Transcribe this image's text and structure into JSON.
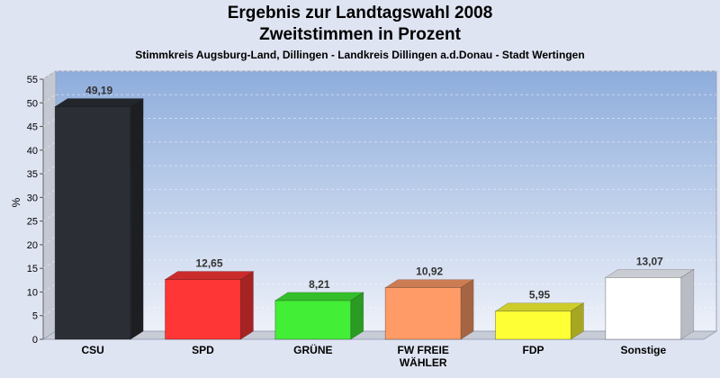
{
  "chart_data": {
    "type": "bar",
    "title": "Ergebnis zur Landtagswahl 2008",
    "subtitle": "Zweitstimmen in Prozent",
    "caption": "Stimmkreis Augsburg-Land, Dillingen - Landkreis Dillingen a.d.Donau - Stadt Wertingen",
    "ylabel": "%",
    "ylim": [
      0,
      55
    ],
    "yticks": [
      0,
      5,
      10,
      15,
      20,
      25,
      30,
      35,
      40,
      45,
      50,
      55
    ],
    "grid": true,
    "categories": [
      "CSU",
      "SPD",
      "GRÜNE",
      "FW FREIE WÄHLER",
      "FDP",
      "Sonstige"
    ],
    "category_lines": [
      [
        "CSU"
      ],
      [
        "SPD"
      ],
      [
        "GRÜNE"
      ],
      [
        "FW FREIE",
        "WÄHLER"
      ],
      [
        "FDP"
      ],
      [
        "Sonstige"
      ]
    ],
    "values": [
      49.19,
      12.65,
      8.21,
      10.92,
      5.95,
      13.07
    ],
    "value_labels": [
      "49,19",
      "12,65",
      "8,21",
      "10,92",
      "5,95",
      "13,07"
    ],
    "colors": [
      "#2b2e35",
      "#ff3636",
      "#42ee36",
      "#ff9b66",
      "#ffff36",
      "#ffffff"
    ]
  }
}
